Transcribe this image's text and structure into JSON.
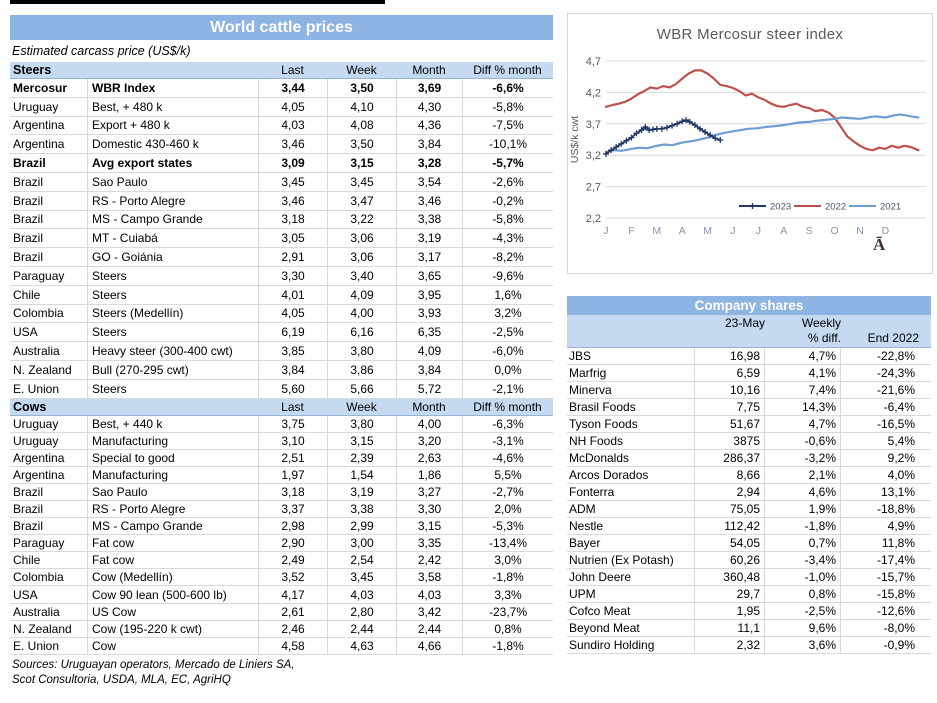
{
  "left_panel": {
    "title": "World cattle prices",
    "subtitle": "Estimated carcass price (US$/k)",
    "price_columns": {
      "last": "Last",
      "week": "Week",
      "month": "Month",
      "diff": "Diff % month"
    },
    "steers": {
      "label": "Steers",
      "rows": [
        {
          "country": "Mercosur",
          "item": "WBR Index",
          "last": "3,44",
          "week": "3,50",
          "month": "3,69",
          "diff": "-6,6%",
          "bold": true
        },
        {
          "country": "Uruguay",
          "item": "Best, + 480 k",
          "last": "4,05",
          "week": "4,10",
          "month": "4,30",
          "diff": "-5,8%",
          "bold": false
        },
        {
          "country": "Argentina",
          "item": "Export + 480 k",
          "last": "4,03",
          "week": "4,08",
          "month": "4,36",
          "diff": "-7,5%",
          "bold": false
        },
        {
          "country": "Argentina",
          "item": "Domestic 430-460 k",
          "last": "3,46",
          "week": "3,50",
          "month": "3,84",
          "diff": "-10,1%",
          "bold": false
        },
        {
          "country": "Brazil",
          "item": "Avg export states",
          "last": "3,09",
          "week": "3,15",
          "month": "3,28",
          "diff": "-5,7%",
          "bold": true
        },
        {
          "country": "Brazil",
          "item": "Sao Paulo",
          "last": "3,45",
          "week": "3,45",
          "month": "3,54",
          "diff": "-2,6%",
          "bold": false
        },
        {
          "country": "Brazil",
          "item": "RS - Porto Alegre",
          "last": "3,46",
          "week": "3,47",
          "month": "3,46",
          "diff": "-0,2%",
          "bold": false
        },
        {
          "country": "Brazil",
          "item": "MS - Campo Grande",
          "last": "3,18",
          "week": "3,22",
          "month": "3,38",
          "diff": "-5,8%",
          "bold": false
        },
        {
          "country": "Brazil",
          "item": "MT - Cuiabá",
          "last": "3,05",
          "week": "3,06",
          "month": "3,19",
          "diff": "-4,3%",
          "bold": false
        },
        {
          "country": "Brazil",
          "item": "GO - Goiánia",
          "last": "2,91",
          "week": "3,06",
          "month": "3,17",
          "diff": "-8,2%",
          "bold": false
        },
        {
          "country": "Paraguay",
          "item": "Steers",
          "last": "3,30",
          "week": "3,40",
          "month": "3,65",
          "diff": "-9,6%",
          "bold": false
        },
        {
          "country": "Chile",
          "item": "Steers",
          "last": "4,01",
          "week": "4,09",
          "month": "3,95",
          "diff": "1,6%",
          "bold": false
        },
        {
          "country": "Colombia",
          "item": "Steers (Medellín)",
          "last": "4,05",
          "week": "4,00",
          "month": "3,93",
          "diff": "3,2%",
          "bold": false
        },
        {
          "country": "USA",
          "item": "Steers",
          "last": "6,19",
          "week": "6,16",
          "month": "6,35",
          "diff": "-2,5%",
          "bold": false
        },
        {
          "country": "Australia",
          "item": "Heavy steer (300-400 cwt)",
          "last": "3,85",
          "week": "3,80",
          "month": "4,09",
          "diff": "-6,0%",
          "bold": false
        },
        {
          "country": "N. Zealand",
          "item": "Bull (270-295 cwt)",
          "last": "3,84",
          "week": "3,86",
          "month": "3,84",
          "diff": "0,0%",
          "bold": false
        },
        {
          "country": "E. Union",
          "item": "Steers",
          "last": "5,60",
          "week": "5,66",
          "month": "5,72",
          "diff": "-2,1%",
          "bold": false
        }
      ]
    },
    "cows": {
      "label": "Cows",
      "rows": [
        {
          "country": "Uruguay",
          "item": "Best, + 440 k",
          "last": "3,75",
          "week": "3,80",
          "month": "4,00",
          "diff": "-6,3%",
          "bold": false
        },
        {
          "country": "Uruguay",
          "item": "Manufacturing",
          "last": "3,10",
          "week": "3,15",
          "month": "3,20",
          "diff": "-3,1%",
          "bold": false
        },
        {
          "country": "Argentina",
          "item": "Special to good",
          "last": "2,51",
          "week": "2,39",
          "month": "2,63",
          "diff": "-4,6%",
          "bold": false
        },
        {
          "country": "Argentina",
          "item": "Manufacturing",
          "last": "1,97",
          "week": "1,54",
          "month": "1,86",
          "diff": "5,5%",
          "bold": false
        },
        {
          "country": "Brazil",
          "item": "Sao Paulo",
          "last": "3,18",
          "week": "3,19",
          "month": "3,27",
          "diff": "-2,7%",
          "bold": false
        },
        {
          "country": "Brazil",
          "item": "RS - Porto Alegre",
          "last": "3,37",
          "week": "3,38",
          "month": "3,30",
          "diff": "2,0%",
          "bold": false
        },
        {
          "country": "Brazil",
          "item": "MS - Campo Grande",
          "last": "2,98",
          "week": "2,99",
          "month": "3,15",
          "diff": "-5,3%",
          "bold": false
        },
        {
          "country": "Paraguay",
          "item": "Fat cow",
          "last": "2,90",
          "week": "3,00",
          "month": "3,35",
          "diff": "-13,4%",
          "bold": false
        },
        {
          "country": "Chile",
          "item": "Fat cow",
          "last": "2,49",
          "week": "2,54",
          "month": "2,42",
          "diff": "3,0%",
          "bold": false
        },
        {
          "country": "Colombia",
          "item": "Cow (Medellín)",
          "last": "3,52",
          "week": "3,45",
          "month": "3,58",
          "diff": "-1,8%",
          "bold": false
        },
        {
          "country": "USA",
          "item": "Cow 90 lean (500-600 lb)",
          "last": "4,17",
          "week": "4,03",
          "month": "4,03",
          "diff": "3,3%",
          "bold": false
        },
        {
          "country": "Australia",
          "item": "US Cow",
          "last": "2,61",
          "week": "2,80",
          "month": "3,42",
          "diff": "-23,7%",
          "bold": false
        },
        {
          "country": "N. Zealand",
          "item": "Cow (195-220 k cwt)",
          "last": "2,46",
          "week": "2,44",
          "month": "2,44",
          "diff": "0,8%",
          "bold": false
        },
        {
          "country": "E. Union",
          "item": "Cow",
          "last": "4,58",
          "week": "4,63",
          "month": "4,66",
          "diff": "-1,8%",
          "bold": false
        }
      ]
    },
    "sources": [
      "Sources: Uruguayan operators, Mercado de Liniers SA,",
      "Scot Consultoria, USDA, MLA, EC, AgriHQ"
    ]
  },
  "chart_data": {
    "type": "line",
    "title": "WBR Mercosur steer index",
    "ylabel": "US$/k cwt",
    "xlabel": "",
    "ylim": [
      2.2,
      4.7
    ],
    "grid": true,
    "legend_position": "bottom-right-inside",
    "corner_glyph": "Ā",
    "yticks": [
      {
        "label": "4,7",
        "value": 4.7
      },
      {
        "label": "4,2",
        "value": 4.2
      },
      {
        "label": "3,7",
        "value": 3.7
      },
      {
        "label": "3,2",
        "value": 3.2
      },
      {
        "label": "2,7",
        "value": 2.7
      },
      {
        "label": "2,2",
        "value": 2.2
      }
    ],
    "x_labels": [
      "J",
      "F",
      "M",
      "A",
      "M",
      "J",
      "J",
      "A",
      "S",
      "O",
      "N",
      "D"
    ],
    "series": [
      {
        "name": "2022",
        "color": "#C0504D",
        "marker": "none",
        "points": [
          [
            0,
            3.97
          ],
          [
            0.25,
            4.0
          ],
          [
            0.5,
            4.02
          ],
          [
            0.75,
            4.05
          ],
          [
            1,
            4.1
          ],
          [
            1.25,
            4.17
          ],
          [
            1.5,
            4.22
          ],
          [
            1.75,
            4.28
          ],
          [
            2,
            4.26
          ],
          [
            2.25,
            4.3
          ],
          [
            2.5,
            4.28
          ],
          [
            2.75,
            4.33
          ],
          [
            3,
            4.42
          ],
          [
            3.25,
            4.5
          ],
          [
            3.5,
            4.55
          ],
          [
            3.75,
            4.55
          ],
          [
            4,
            4.5
          ],
          [
            4.25,
            4.42
          ],
          [
            4.5,
            4.32
          ],
          [
            4.75,
            4.3
          ],
          [
            5,
            4.27
          ],
          [
            5.25,
            4.22
          ],
          [
            5.5,
            4.15
          ],
          [
            5.75,
            4.18
          ],
          [
            6,
            4.12
          ],
          [
            6.25,
            4.08
          ],
          [
            6.5,
            4.02
          ],
          [
            6.75,
            3.98
          ],
          [
            7,
            3.97
          ],
          [
            7.25,
            4.0
          ],
          [
            7.5,
            4.02
          ],
          [
            7.75,
            3.97
          ],
          [
            8,
            3.95
          ],
          [
            8.25,
            3.9
          ],
          [
            8.5,
            3.92
          ],
          [
            8.75,
            3.88
          ],
          [
            9,
            3.8
          ],
          [
            9.25,
            3.65
          ],
          [
            9.5,
            3.5
          ],
          [
            9.75,
            3.42
          ],
          [
            10,
            3.35
          ],
          [
            10.25,
            3.3
          ],
          [
            10.5,
            3.28
          ],
          [
            10.75,
            3.32
          ],
          [
            11,
            3.3
          ],
          [
            11.25,
            3.35
          ],
          [
            11.5,
            3.32
          ],
          [
            11.75,
            3.35
          ],
          [
            12,
            3.33
          ],
          [
            12.3,
            3.28
          ]
        ]
      },
      {
        "name": "2021",
        "color": "#6D9DD1",
        "marker": "none",
        "points": [
          [
            0,
            3.25
          ],
          [
            0.3,
            3.28
          ],
          [
            0.6,
            3.27
          ],
          [
            1,
            3.3
          ],
          [
            1.3,
            3.32
          ],
          [
            1.6,
            3.31
          ],
          [
            2,
            3.35
          ],
          [
            2.3,
            3.37
          ],
          [
            2.6,
            3.36
          ],
          [
            3,
            3.4
          ],
          [
            3.3,
            3.42
          ],
          [
            3.6,
            3.44
          ],
          [
            4,
            3.48
          ],
          [
            4.3,
            3.52
          ],
          [
            4.6,
            3.55
          ],
          [
            5,
            3.58
          ],
          [
            5.3,
            3.6
          ],
          [
            5.6,
            3.62
          ],
          [
            6,
            3.63
          ],
          [
            6.3,
            3.65
          ],
          [
            6.6,
            3.66
          ],
          [
            7,
            3.68
          ],
          [
            7.3,
            3.7
          ],
          [
            7.6,
            3.72
          ],
          [
            8,
            3.73
          ],
          [
            8.3,
            3.75
          ],
          [
            8.6,
            3.76
          ],
          [
            9,
            3.78
          ],
          [
            9.3,
            3.8
          ],
          [
            9.6,
            3.79
          ],
          [
            10,
            3.78
          ],
          [
            10.3,
            3.8
          ],
          [
            10.6,
            3.82
          ],
          [
            11,
            3.8
          ],
          [
            11.3,
            3.83
          ],
          [
            11.6,
            3.85
          ],
          [
            12,
            3.82
          ],
          [
            12.3,
            3.8
          ]
        ]
      },
      {
        "name": "2023",
        "color": "#1F3864",
        "marker": "plus",
        "points": [
          [
            0,
            3.22
          ],
          [
            0.2,
            3.28
          ],
          [
            0.4,
            3.33
          ],
          [
            0.6,
            3.38
          ],
          [
            0.8,
            3.43
          ],
          [
            1,
            3.48
          ],
          [
            1.2,
            3.55
          ],
          [
            1.4,
            3.6
          ],
          [
            1.55,
            3.65
          ],
          [
            1.7,
            3.6
          ],
          [
            1.85,
            3.61
          ],
          [
            2,
            3.62
          ],
          [
            2.2,
            3.62
          ],
          [
            2.4,
            3.64
          ],
          [
            2.6,
            3.67
          ],
          [
            2.8,
            3.7
          ],
          [
            3,
            3.74
          ],
          [
            3.15,
            3.76
          ],
          [
            3.3,
            3.73
          ],
          [
            3.5,
            3.68
          ],
          [
            3.7,
            3.62
          ],
          [
            3.9,
            3.57
          ],
          [
            4.1,
            3.52
          ],
          [
            4.3,
            3.47
          ],
          [
            4.5,
            3.44
          ]
        ]
      }
    ],
    "legend_order": [
      "2023",
      "2022",
      "2021"
    ]
  },
  "company_shares": {
    "title": "Company shares",
    "columns": {
      "date": "23-May",
      "weekly_line1": "Weekly",
      "weekly_line2": "% diff.",
      "end": "End 2022"
    },
    "rows": [
      {
        "name": "JBS",
        "value": "16,98",
        "weekly": "4,7%",
        "end": "-22,8%"
      },
      {
        "name": "Marfrig",
        "value": "6,59",
        "weekly": "4,1%",
        "end": "-24,3%"
      },
      {
        "name": "Minerva",
        "value": "10,16",
        "weekly": "7,4%",
        "end": "-21,6%"
      },
      {
        "name": "Brasil Foods",
        "value": "7,75",
        "weekly": "14,3%",
        "end": "-6,4%"
      },
      {
        "name": "Tyson Foods",
        "value": "51,67",
        "weekly": "4,7%",
        "end": "-16,5%"
      },
      {
        "name": "NH Foods",
        "value": "3875",
        "weekly": "-0,6%",
        "end": "5,4%"
      },
      {
        "name": "McDonalds",
        "value": "286,37",
        "weekly": "-3,2%",
        "end": "9,2%"
      },
      {
        "name": "Arcos Dorados",
        "value": "8,66",
        "weekly": "2,1%",
        "end": "4,0%"
      },
      {
        "name": "Fonterra",
        "value": "2,94",
        "weekly": "4,6%",
        "end": "13,1%"
      },
      {
        "name": "ADM",
        "value": "75,05",
        "weekly": "1,9%",
        "end": "-18,8%"
      },
      {
        "name": "Nestle",
        "value": "112,42",
        "weekly": "-1,8%",
        "end": "4,9%"
      },
      {
        "name": "Bayer",
        "value": "54,05",
        "weekly": "0,7%",
        "end": "11,8%"
      },
      {
        "name": "Nutrien (Ex Potash)",
        "value": "60,26",
        "weekly": "-3,4%",
        "end": "-17,4%"
      },
      {
        "name": "John Deere",
        "value": "360,48",
        "weekly": "-1,0%",
        "end": "-15,7%"
      },
      {
        "name": "UPM",
        "value": "29,7",
        "weekly": "0,8%",
        "end": "-15,8%"
      },
      {
        "name": "Cofco Meat",
        "value": "1,95",
        "weekly": "-2,5%",
        "end": "-12,6%"
      },
      {
        "name": "Beyond Meat",
        "value": "11,1",
        "weekly": "9,6%",
        "end": "-8,0%"
      },
      {
        "name": "Sundiro Holding",
        "value": "2,32",
        "weekly": "3,6%",
        "end": "-0,9%"
      }
    ]
  },
  "colors": {
    "header_blue": "#8DB4E2",
    "subheader_blue": "#C5D9F1",
    "row_border": "#D9D9D9",
    "series_2023": "#1F3864",
    "series_2022": "#C0504D",
    "series_2021": "#6D9DD1",
    "chart_text": "#595959",
    "month_label": "#8496B0",
    "legend_text": "#44546A"
  }
}
